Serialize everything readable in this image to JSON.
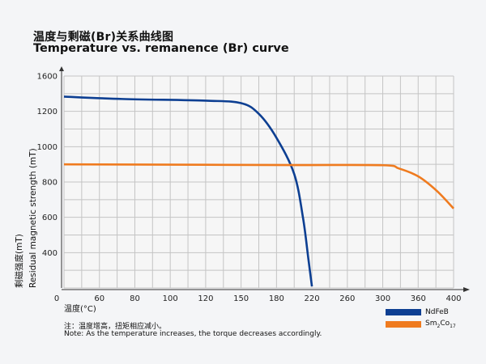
{
  "title_cn": "温度与剩磁(Br)关系曲线图",
  "title_en": "Temperature vs. remanence (Br) curve",
  "chart_data": {
    "type": "line",
    "title": "Temperature vs. remanence (Br) curve",
    "xlabel": "温度(°C)",
    "ylabel_cn": "剩磁强度(mT)",
    "ylabel_en": "Residual magnetic strength (mT)",
    "x_origin_label": "0",
    "x_ticks": [
      60,
      80,
      100,
      120,
      150,
      180,
      220,
      260,
      300,
      360,
      400
    ],
    "y_ticks": [
      400,
      600,
      800,
      1000,
      1200,
      1600
    ],
    "grid": true,
    "legend_position": "bottom-right",
    "series": [
      {
        "name": "NdFeB",
        "color": "#0d3f92",
        "x": [
          40,
          73,
          120,
          150,
          165,
          180,
          200,
          210,
          216,
          220
        ],
        "y": [
          1367,
          1340,
          1321,
          1293,
          1186,
          1050,
          845,
          595,
          364,
          209
        ]
      },
      {
        "name": "Sm2Co17",
        "color": "#ef7b1f",
        "x": [
          40,
          100,
          200,
          300,
          327,
          360,
          381,
          400
        ],
        "y": [
          900,
          898,
          896,
          895,
          877,
          832,
          750,
          650
        ]
      }
    ]
  },
  "legend": [
    {
      "label": "NdFeB",
      "color": "#0d3f92"
    },
    {
      "label_main": "Sm",
      "sub1": "2",
      "mid": "Co",
      "sub2": "17",
      "color": "#ef7b1f"
    }
  ],
  "note_cn": "注：温度增高，扭矩相应减小。",
  "note_en": "Note: As the temperature increases, the torque decreases accordingly."
}
